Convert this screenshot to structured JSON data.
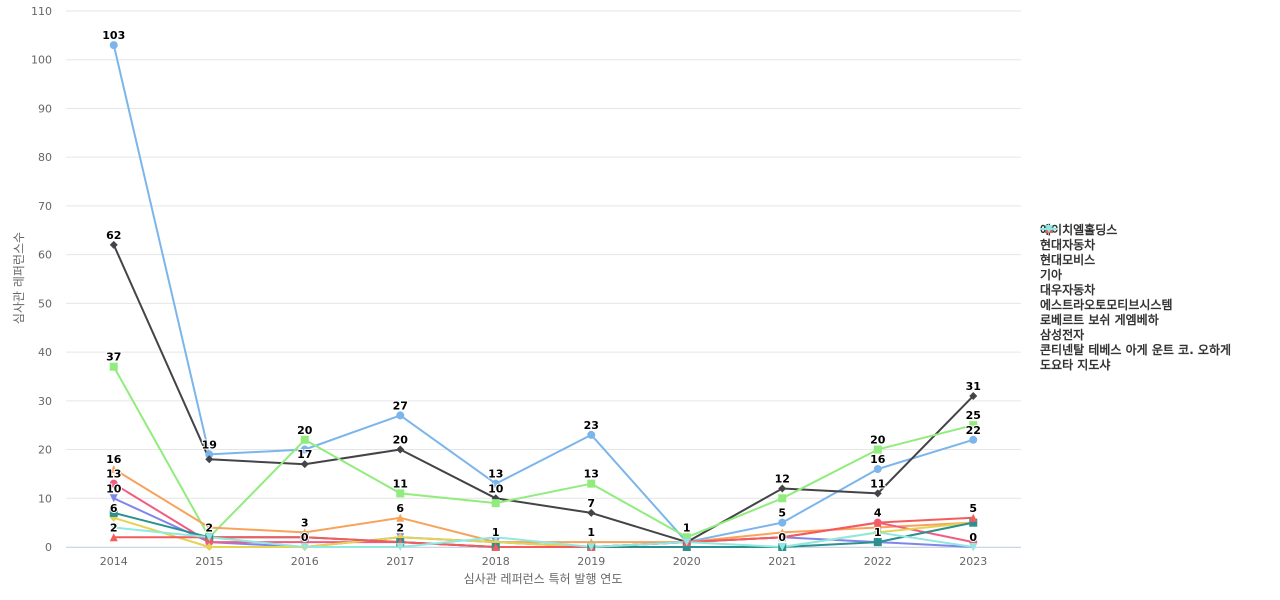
{
  "chart_data": {
    "type": "line",
    "xlabel": "심사관 레퍼런스 특허 발행 연도",
    "ylabel": "심사관 레퍼런스수",
    "ylim": [
      0,
      110
    ],
    "yticks": [
      0,
      10,
      20,
      30,
      40,
      50,
      60,
      70,
      80,
      90,
      100,
      110
    ],
    "grid": true,
    "legend_position": "right",
    "categories": [
      "2014",
      "2015",
      "2016",
      "2017",
      "2018",
      "2019",
      "2020",
      "2021",
      "2022",
      "2023"
    ],
    "series": [
      {
        "name": "에이치엘홀딩스",
        "color": "#7cb5ec",
        "marker": "circle",
        "values": [
          103,
          19,
          20,
          27,
          13,
          23,
          1,
          5,
          16,
          22
        ]
      },
      {
        "name": "현대자동차",
        "color": "#434348",
        "marker": "diamond",
        "values": [
          62,
          18,
          17,
          20,
          10,
          7,
          1,
          12,
          11,
          31
        ]
      },
      {
        "name": "현대모비스",
        "color": "#90ed7d",
        "marker": "square",
        "values": [
          37,
          2,
          22,
          11,
          9,
          13,
          2,
          10,
          20,
          25
        ]
      },
      {
        "name": "기아",
        "color": "#f7a35c",
        "marker": "triangle",
        "values": [
          16,
          4,
          3,
          6,
          1,
          1,
          1,
          3,
          4,
          5
        ]
      },
      {
        "name": "대우자동차",
        "color": "#8085e9",
        "marker": "triangle-down",
        "values": [
          10,
          1,
          0,
          2,
          1,
          0,
          1,
          2,
          1,
          0
        ]
      },
      {
        "name": "에스트라오토모티브시스템",
        "color": "#f15c80",
        "marker": "circle",
        "values": [
          13,
          1,
          1,
          1,
          0,
          0,
          1,
          2,
          5,
          1
        ]
      },
      {
        "name": "로베르트 보쉬 게엠베하",
        "color": "#e4d354",
        "marker": "diamond",
        "values": [
          6,
          0,
          0,
          2,
          1,
          0,
          0,
          0,
          3,
          5
        ]
      },
      {
        "name": "삼성전자",
        "color": "#2b908f",
        "marker": "square",
        "values": [
          7,
          2,
          2,
          1,
          0,
          0,
          0,
          0,
          1,
          5
        ]
      },
      {
        "name": "콘티넨탈 테베스 아게 운트 코. 오하게",
        "color": "#f45b5b",
        "marker": "triangle",
        "values": [
          2,
          2,
          2,
          1,
          0,
          0,
          1,
          2,
          5,
          6
        ]
      },
      {
        "name": "도요타 지도샤",
        "color": "#91e8e1",
        "marker": "triangle-down",
        "values": [
          4,
          2,
          0,
          0,
          2,
          0,
          1,
          0,
          3,
          0
        ]
      }
    ],
    "data_labels": [
      {
        "text": "103",
        "x": "2014",
        "y": 103
      },
      {
        "text": "62",
        "x": "2014",
        "y": 62
      },
      {
        "text": "37",
        "x": "2014",
        "y": 37
      },
      {
        "text": "16",
        "x": "2014",
        "y": 16
      },
      {
        "text": "13",
        "x": "2014",
        "y": 13
      },
      {
        "text": "10",
        "x": "2014",
        "y": 10
      },
      {
        "text": "6",
        "x": "2014",
        "y": 6
      },
      {
        "text": "2",
        "x": "2014",
        "y": 2
      },
      {
        "text": "19",
        "x": "2015",
        "y": 19
      },
      {
        "text": "2",
        "x": "2015",
        "y": 2
      },
      {
        "text": "20",
        "x": "2016",
        "y": 22
      },
      {
        "text": "17",
        "x": "2016",
        "y": 17
      },
      {
        "text": "3",
        "x": "2016",
        "y": 3
      },
      {
        "text": "0",
        "x": "2016",
        "y": 0
      },
      {
        "text": "27",
        "x": "2017",
        "y": 27
      },
      {
        "text": "20",
        "x": "2017",
        "y": 20
      },
      {
        "text": "11",
        "x": "2017",
        "y": 11
      },
      {
        "text": "6",
        "x": "2017",
        "y": 6
      },
      {
        "text": "2",
        "x": "2017",
        "y": 2
      },
      {
        "text": "13",
        "x": "2018",
        "y": 13
      },
      {
        "text": "10",
        "x": "2018",
        "y": 10
      },
      {
        "text": "1",
        "x": "2018",
        "y": 1
      },
      {
        "text": "23",
        "x": "2019",
        "y": 23
      },
      {
        "text": "13",
        "x": "2019",
        "y": 13
      },
      {
        "text": "7",
        "x": "2019",
        "y": 7
      },
      {
        "text": "1",
        "x": "2019",
        "y": 1
      },
      {
        "text": "1",
        "x": "2020",
        "y": 2
      },
      {
        "text": "12",
        "x": "2021",
        "y": 12
      },
      {
        "text": "5",
        "x": "2021",
        "y": 5
      },
      {
        "text": "0",
        "x": "2021",
        "y": 0
      },
      {
        "text": "20",
        "x": "2022",
        "y": 20
      },
      {
        "text": "16",
        "x": "2022",
        "y": 16
      },
      {
        "text": "11",
        "x": "2022",
        "y": 11
      },
      {
        "text": "4",
        "x": "2022",
        "y": 5
      },
      {
        "text": "1",
        "x": "2022",
        "y": 1
      },
      {
        "text": "31",
        "x": "2023",
        "y": 31
      },
      {
        "text": "25",
        "x": "2023",
        "y": 25
      },
      {
        "text": "22",
        "x": "2023",
        "y": 22
      },
      {
        "text": "5",
        "x": "2023",
        "y": 6
      },
      {
        "text": "0",
        "x": "2023",
        "y": 0
      }
    ]
  }
}
